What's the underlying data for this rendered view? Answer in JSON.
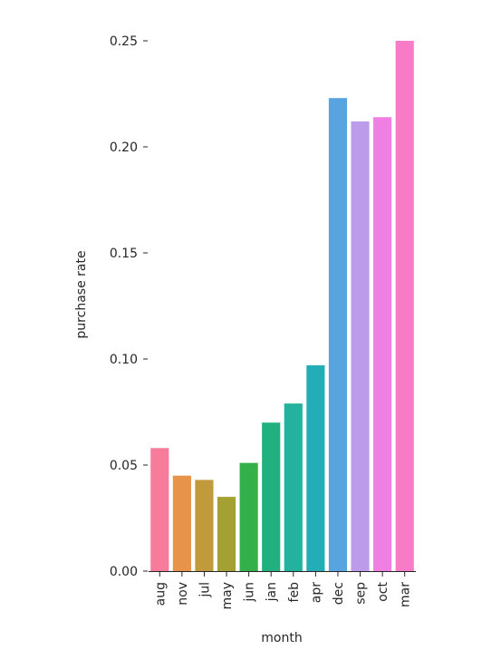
{
  "chart_data": {
    "type": "bar",
    "title": "",
    "xlabel": "month",
    "ylabel": "purchase rate",
    "categories": [
      "aug",
      "nov",
      "jul",
      "may",
      "jun",
      "jan",
      "feb",
      "apr",
      "dec",
      "sep",
      "oct",
      "mar"
    ],
    "values": [
      0.058,
      0.045,
      0.043,
      0.035,
      0.051,
      0.07,
      0.079,
      0.097,
      0.223,
      0.212,
      0.214,
      0.25
    ],
    "colors": [
      "#f77b9a",
      "#e8934a",
      "#c19a3c",
      "#a5a033",
      "#33b04a",
      "#21b180",
      "#22b29e",
      "#23ad b7",
      "#58a4e0",
      "#bb9bea",
      "#f07fe4",
      "#f77bc7"
    ],
    "ylim": [
      0,
      0.25
    ],
    "yticks": [
      "0.00",
      "0.05",
      "0.10",
      "0.15",
      "0.20",
      "0.25"
    ],
    "ytick_values": [
      0,
      0.05,
      0.1,
      0.15,
      0.2,
      0.25
    ],
    "grid": false,
    "legend": "none"
  }
}
